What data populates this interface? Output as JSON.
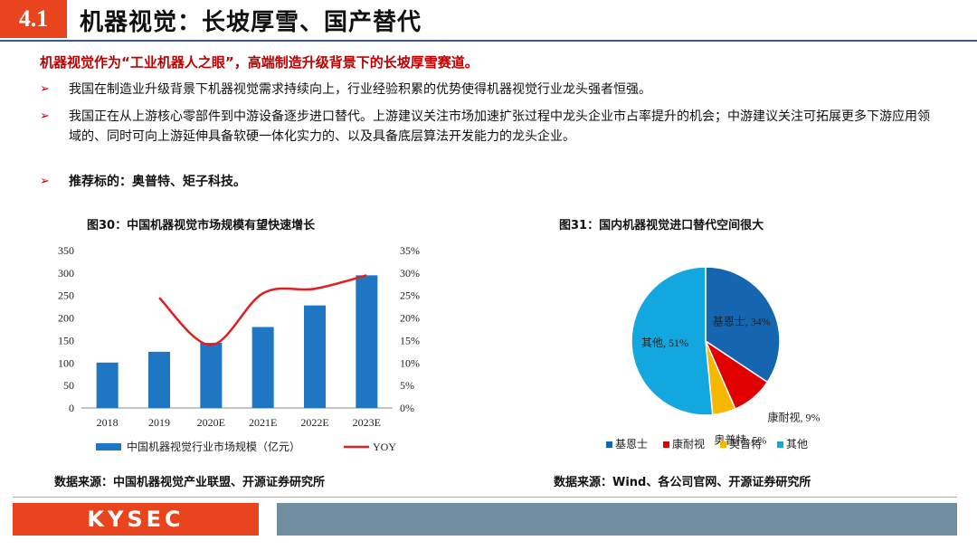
{
  "header": {
    "section_number": "4.1",
    "title": "机器视觉：长坡厚雪、国产替代"
  },
  "subtitle": "机器视觉作为“工业机器人之眼”，高端制造升级背景下的长坡厚雪赛道。",
  "bullets": [
    {
      "marker": "➢",
      "text": "我国在制造业升级背景下机器视觉需求持续向上，行业经验积累的优势使得机器视觉行业龙头强者恒强。"
    },
    {
      "marker": "➢",
      "text": "我国正在从上游核心零部件到中游设备逐步进口替代。上游建议关注市场加速扩张过程中龙头企业市占率提升的机会；中游建议关注可拓展更多下游应用领域的、同时可向上游延伸具备软硬一体化实力的、以及具备底层算法开发能力的龙头企业。"
    },
    {
      "marker": "➢",
      "text": "推荐标的：奥普特、矩子科技。"
    }
  ],
  "figure30": {
    "title": "图30：中国机器视觉市场规模有望快速增长",
    "source": "数据来源：中国机器视觉产业联盟、开源证券研究所"
  },
  "figure31": {
    "title": "图31：国内机器视觉进口替代空间很大",
    "source": "数据来源：Wind、各公司官网、开源证券研究所"
  },
  "chart_data": [
    {
      "type": "bar",
      "categories": [
        "2018",
        "2019",
        "2020E",
        "2021E",
        "2022E",
        "2023E"
      ],
      "series": [
        {
          "name": "中国机器视觉行业市场规模（亿元）",
          "type": "bar",
          "axis": "left",
          "color": "#1f77c4",
          "values": [
            101,
            125,
            145,
            180,
            228,
            295
          ]
        },
        {
          "name": "YOY",
          "type": "line",
          "axis": "right",
          "color": "#e02020",
          "values": [
            null,
            24.5,
            14.0,
            25.5,
            26.5,
            29.5
          ]
        }
      ],
      "ylim_left": [
        0,
        350
      ],
      "yticks_left": [
        "0",
        "50",
        "100",
        "150",
        "200",
        "250",
        "300",
        "350"
      ],
      "ylim_right": [
        0,
        35
      ],
      "yticks_right": [
        "0%",
        "5%",
        "10%",
        "15%",
        "20%",
        "25%",
        "30%",
        "35%"
      ],
      "legend_position": "bottom",
      "grid": false
    },
    {
      "type": "pie",
      "labels": [
        "基恩士",
        "康耐视",
        "奥普特",
        "其他"
      ],
      "data_labels": [
        "基恩士, 34%",
        "康耐视, 9%",
        "奥普特, 5%",
        "其他, 51%"
      ],
      "values": [
        34,
        9,
        5,
        51
      ],
      "colors": [
        "#1565b0",
        "#e00000",
        "#f5b800",
        "#13a7e0"
      ],
      "legend_position": "bottom"
    }
  ],
  "footer": {
    "logo": "KYSEC"
  }
}
